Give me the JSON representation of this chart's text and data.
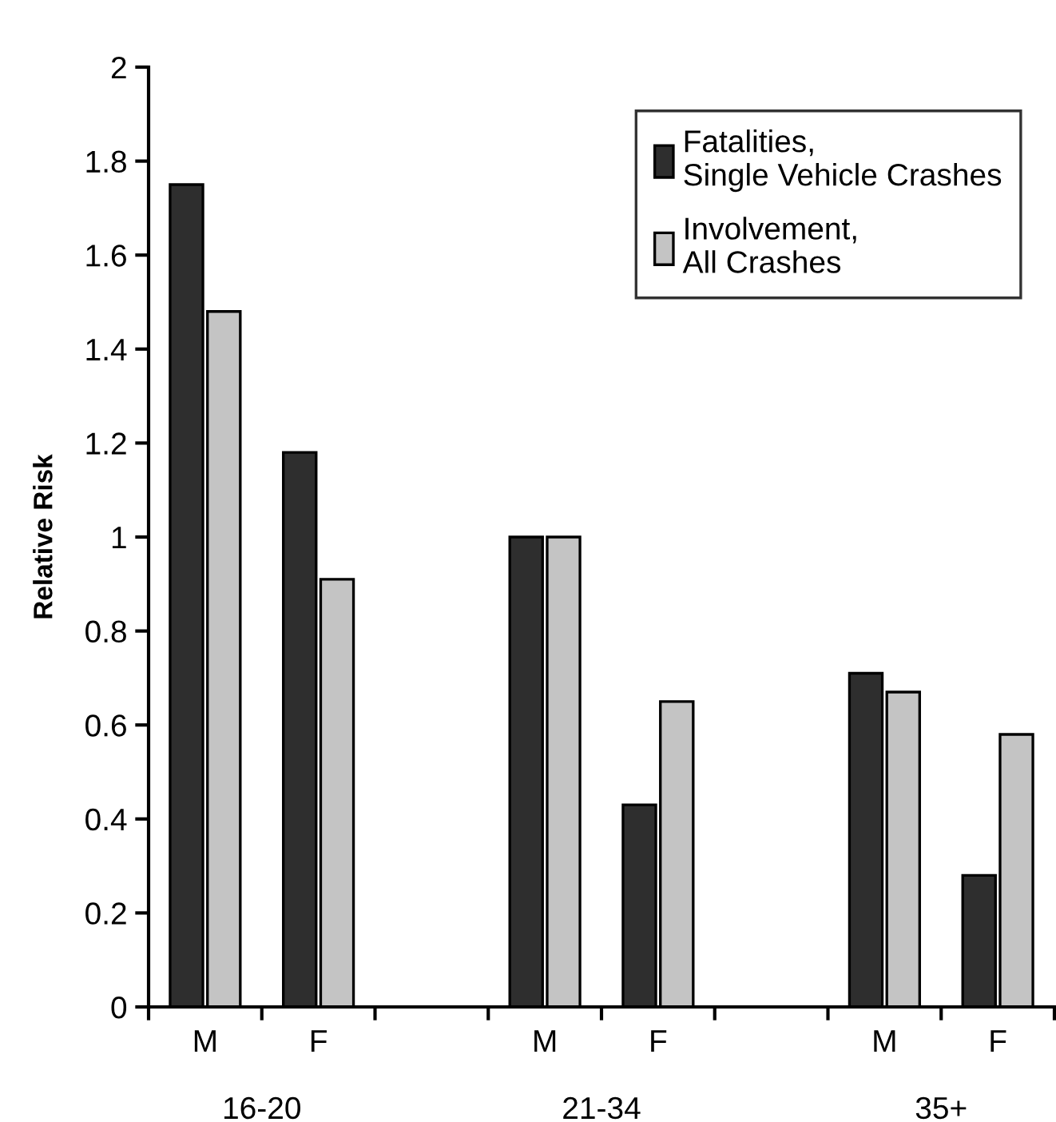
{
  "chart_data": {
    "type": "bar",
    "ylabel": "Relative Risk",
    "categories": [
      "M",
      "F",
      null,
      "M",
      "F",
      null,
      "M",
      "F"
    ],
    "series": [
      {
        "name": "Fatalities,\nSingle Vehicle Crashes",
        "color": "#2e2e2e",
        "values": [
          1.75,
          1.18,
          null,
          1.0,
          0.43,
          null,
          0.71,
          0.28
        ]
      },
      {
        "name": "Involvement,\nAll Crashes",
        "color": "#c4c4c4",
        "values": [
          1.48,
          0.91,
          null,
          1.0,
          0.65,
          null,
          0.67,
          0.58
        ]
      }
    ],
    "annotations": [
      "16-20",
      "21-34",
      "35+"
    ],
    "ylim": [
      0,
      2
    ],
    "yticks": [
      0,
      0.2,
      0.4,
      0.6,
      0.8,
      1,
      1.2,
      1.4,
      1.6,
      1.8,
      2
    ],
    "grid": false,
    "legend": "top right"
  }
}
